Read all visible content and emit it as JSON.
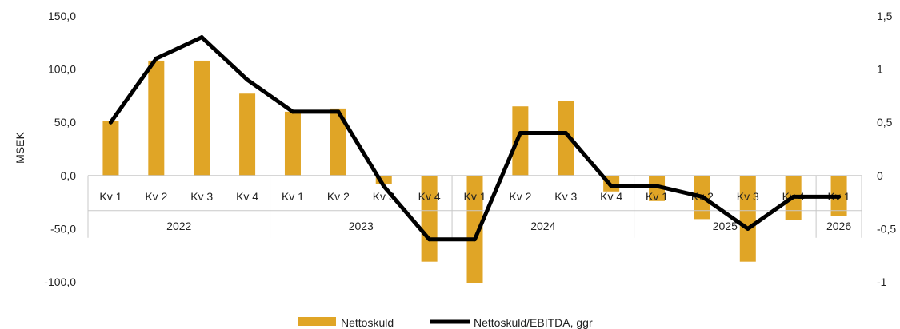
{
  "chart_data": {
    "type": "bar",
    "ylabel": "MSEK",
    "ylim": [
      -100,
      150
    ],
    "y_ticks": [
      "150,0",
      "100,0",
      "50,0",
      "0,0",
      "-50,0",
      "-100,0"
    ],
    "y2lim": [
      -1,
      1.5
    ],
    "y2_ticks": [
      "1,5",
      "1",
      "0,5",
      "0",
      "-0,5",
      "-1"
    ],
    "categories": [
      "Kv 1",
      "Kv 2",
      "Kv 3",
      "Kv 4",
      "Kv 1",
      "Kv 2",
      "Kv 3",
      "Kv 4",
      "Kv 1",
      "Kv 2",
      "Kv 3",
      "Kv 4",
      "Kv 1",
      "Kv 2",
      "Kv 3",
      "Kv 4",
      "Kv 1"
    ],
    "year_groups": [
      {
        "label": "2022",
        "start": 0,
        "count": 4
      },
      {
        "label": "2023",
        "start": 4,
        "count": 4
      },
      {
        "label": "2024",
        "start": 8,
        "count": 4
      },
      {
        "label": "2025",
        "start": 12,
        "count": 4
      },
      {
        "label": "2026",
        "start": 16,
        "count": 1
      }
    ],
    "series": [
      {
        "name": "Nettoskuld",
        "kind": "bar",
        "axis": "left",
        "color": "#E0A526",
        "values": [
          51,
          108,
          108,
          77,
          60,
          63,
          -8,
          -81,
          -101,
          65,
          70,
          -15,
          -24,
          -41,
          -81,
          -42,
          -38
        ]
      },
      {
        "name": "Nettoskuld/EBITDA, ggr",
        "kind": "line",
        "axis": "right",
        "color": "#000000",
        "values": [
          0.5,
          1.1,
          1.3,
          0.9,
          0.6,
          0.6,
          -0.1,
          -0.6,
          -0.6,
          0.4,
          0.4,
          -0.1,
          -0.1,
          -0.2,
          -0.5,
          -0.2,
          -0.2
        ]
      }
    ],
    "legend_position": "bottom"
  }
}
